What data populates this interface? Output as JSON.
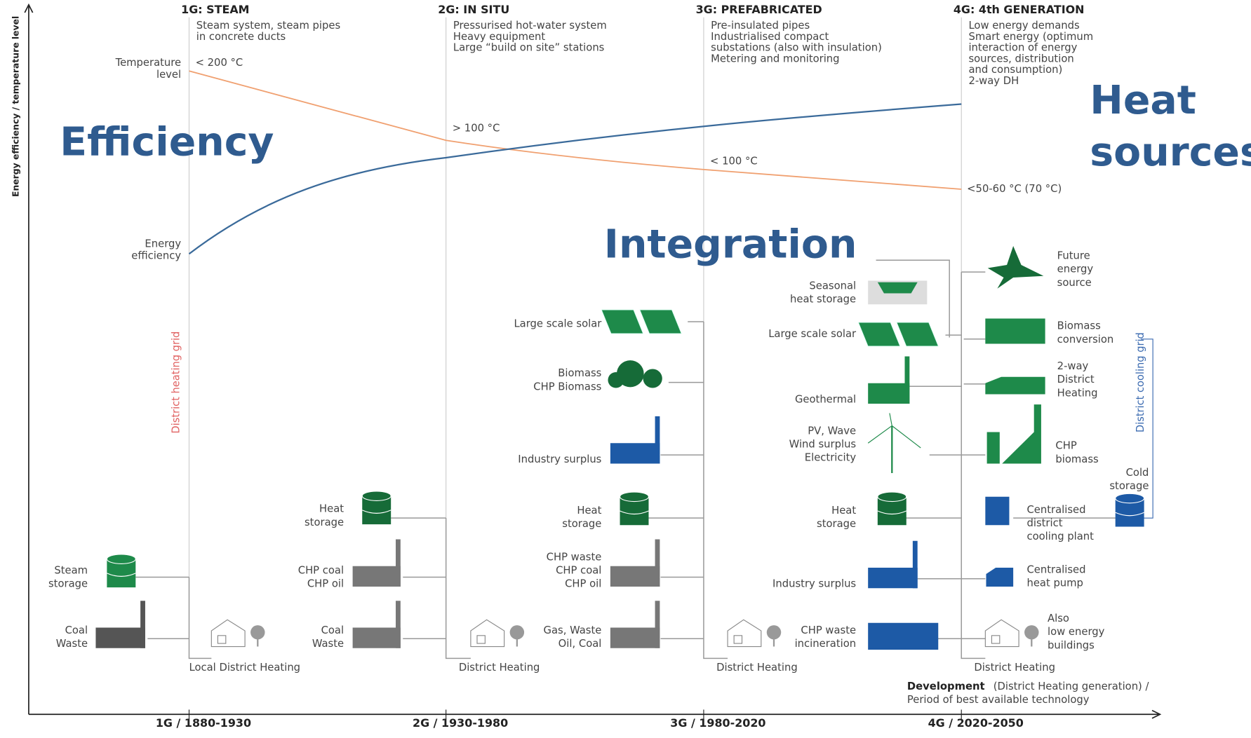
{
  "axes": {
    "y_label": "Energy efficiency / temperature level",
    "x_label": {
      "bold": "Development",
      "rest": "(District Heating generation) /",
      "line2": "Period of best available technology"
    }
  },
  "overlay": {
    "efficiency": "Efficiency",
    "integration": "Integration",
    "heat_sources": [
      "Heat",
      "sources"
    ]
  },
  "generations": [
    {
      "title": "1G: STEAM",
      "description": [
        "Steam system, steam pipes",
        "in concrete ducts"
      ],
      "period": "1G / 1880-1930",
      "network": "Local District Heating"
    },
    {
      "title": "2G: IN SITU",
      "description": [
        "Pressurised hot-water system",
        "Heavy equipment",
        "Large “build on site” stations"
      ],
      "period": "2G / 1930-1980",
      "network": "District Heating"
    },
    {
      "title": "3G: PREFABRICATED",
      "description": [
        "Pre-insulated pipes",
        "Industrialised compact",
        "substations (also with insulation)",
        "Metering and monitoring"
      ],
      "period": "3G / 1980-2020",
      "network": "District Heating"
    },
    {
      "title": "4G: 4th GENERATION",
      "description": [
        "Low energy demands",
        "Smart energy (optimum",
        "interaction of energy",
        "sources, distribution",
        "and consumption)",
        "2-way DH"
      ],
      "period": "4G / 2020-2050",
      "network": "District Heating"
    }
  ],
  "curves": {
    "temperature_label": [
      "Temperature",
      "level"
    ],
    "efficiency_label": [
      "Energy",
      "efficiency"
    ],
    "temperatures": [
      "< 200 °C",
      "> 100 °C",
      "< 100 °C",
      "<50-60 °C (70 °C)"
    ]
  },
  "grids": {
    "heating": "District heating grid",
    "cooling": "District cooling grid"
  },
  "sources_1g": [
    [
      "Steam",
      "storage"
    ],
    [
      "Coal",
      "Waste"
    ]
  ],
  "sources_2g": [
    [
      "Heat",
      "storage"
    ],
    [
      "CHP coal",
      "CHP oil"
    ],
    [
      "Coal",
      "Waste"
    ]
  ],
  "sources_3g": [
    [
      "Large scale solar"
    ],
    [
      "Biomass",
      "CHP Biomass"
    ],
    [
      "Industry surplus"
    ],
    [
      "Heat",
      "storage"
    ],
    [
      "CHP waste",
      "CHP coal",
      "CHP oil"
    ],
    [
      "Gas, Waste",
      "Oil, Coal"
    ]
  ],
  "sources_4g": [
    [
      "Seasonal",
      "heat storage"
    ],
    [
      "Large scale solar"
    ],
    [
      "Geothermal"
    ],
    [
      "PV, Wave",
      "Wind surplus",
      "Electricity"
    ],
    [
      "Heat",
      "storage"
    ],
    [
      "Industry surplus"
    ],
    [
      "CHP waste",
      "incineration"
    ]
  ],
  "outputs_4g": [
    [
      "Future",
      "energy",
      "source"
    ],
    [
      "Biomass",
      "conversion"
    ],
    [
      "2-way",
      "District",
      "Heating"
    ],
    [
      "CHP",
      "biomass"
    ],
    [
      "Centralised",
      "district",
      "cooling plant"
    ],
    [
      "Centralised",
      "heat pump"
    ],
    [
      "Also",
      "low energy",
      "buildings"
    ],
    [
      "Cold",
      "storage"
    ]
  ]
}
